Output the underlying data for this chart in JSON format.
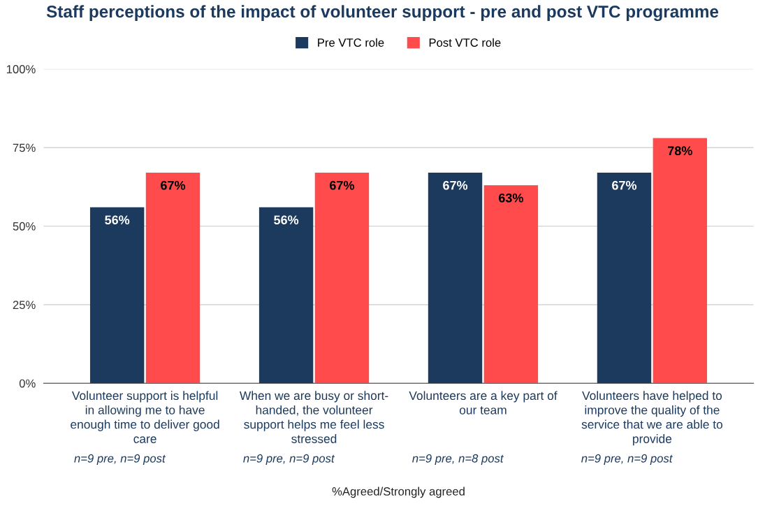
{
  "chart_data": {
    "type": "bar",
    "title": "Staff perceptions of the impact of volunteer support - pre and post VTC programme",
    "xlabel": "%Agreed/Strongly agreed",
    "categories": [
      "Volunteer support is helpful\nin allowing me to have\nenough time to deliver good\ncare",
      "When we are busy or short-\nhanded, the volunteer\nsupport helps me feel less\nstressed",
      "Volunteers are a key part of\nour team",
      "Volunteers have helped to\nimprove the quality of the\nservice that we are able to\nprovide"
    ],
    "series": [
      {
        "name": "Pre VTC role",
        "color": "#1c3a5e",
        "values": [
          56,
          56,
          67,
          67
        ],
        "value_labels": [
          "56%",
          "56%",
          "67%",
          "67%"
        ]
      },
      {
        "name": "Post VTC role",
        "color": "#ff4b4c",
        "values": [
          67,
          67,
          63,
          78
        ],
        "value_labels": [
          "67%",
          "67%",
          "63%",
          "78%"
        ]
      }
    ],
    "ylim": [
      0,
      100
    ],
    "yticks": [
      {
        "value": 0,
        "label": "0%"
      },
      {
        "value": 25,
        "label": "25%"
      },
      {
        "value": 50,
        "label": "50%"
      },
      {
        "value": 75,
        "label": "75%"
      },
      {
        "value": 100,
        "label": "100%"
      }
    ],
    "grid": "y",
    "legend": "top",
    "annotations": [
      "n=9 pre, n=9 post",
      "n=9 pre, n=9 post",
      "n=9 pre, n=8 post",
      "n=9 pre, n=9 post"
    ]
  }
}
